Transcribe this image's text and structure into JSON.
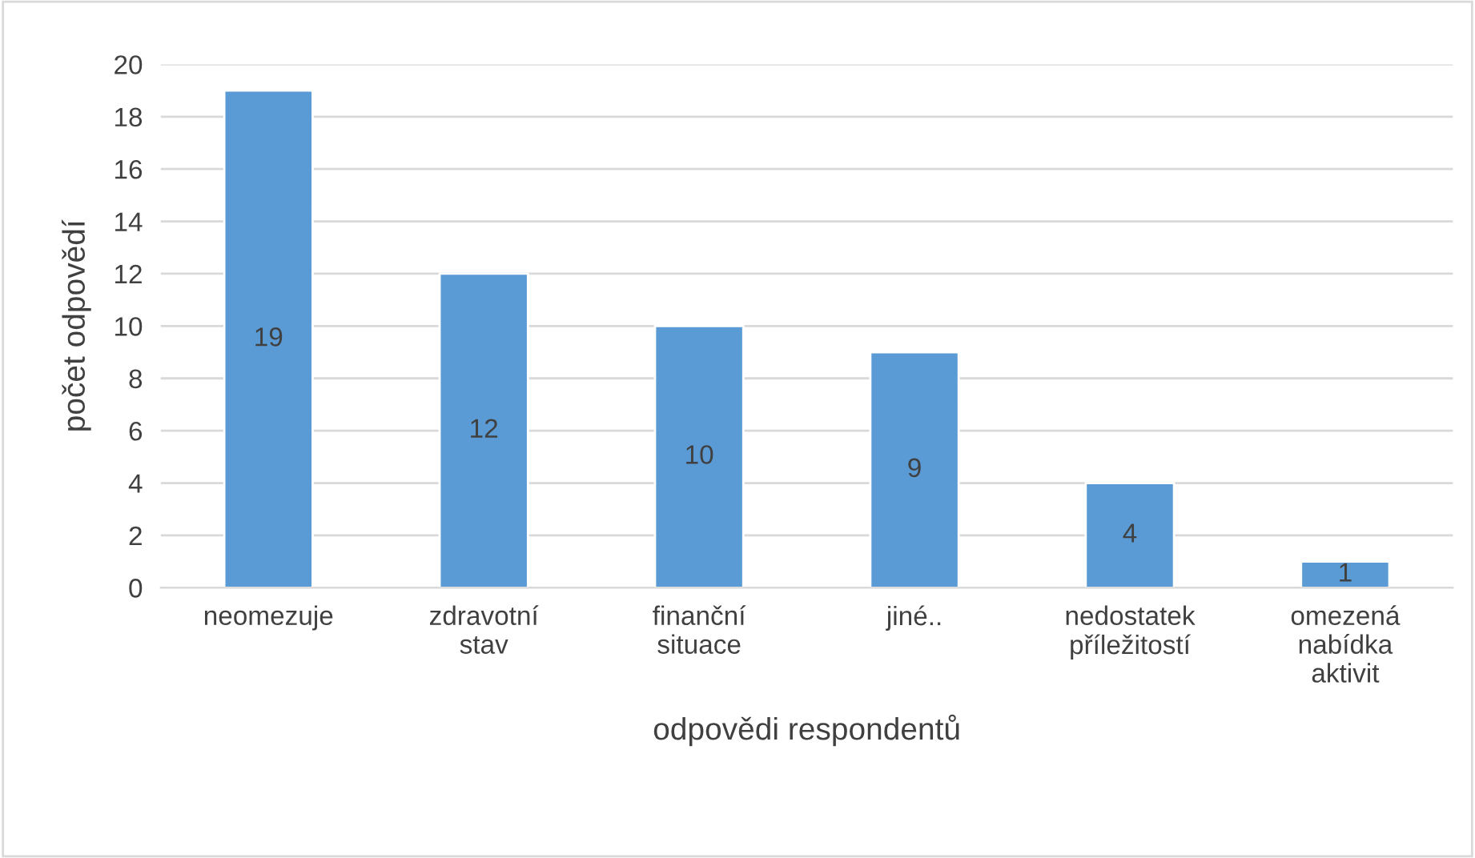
{
  "chart_data": {
    "type": "bar",
    "categories": [
      "neomezuje",
      "zdravotní\nstav",
      "finanční\nsituace",
      "jiné..",
      "nedostatek\npříležitostí",
      "omezená\nnabídka\naktivit"
    ],
    "values": [
      19,
      12,
      10,
      9,
      4,
      1
    ],
    "color": "#5b9bd5",
    "xlabel": "odpovědi respondentů",
    "ylabel": "počet odpovědí",
    "ylim": [
      0,
      20
    ],
    "yticks": [
      0,
      2,
      4,
      6,
      8,
      10,
      12,
      14,
      16,
      18,
      20
    ],
    "grid": "y",
    "data_labels": true
  }
}
